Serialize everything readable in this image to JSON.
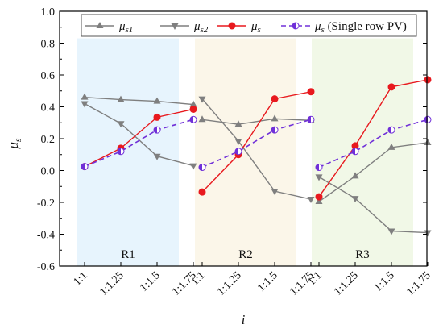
{
  "chart_data": {
    "type": "line",
    "xlabel": "i",
    "ylabel_main": "μ",
    "ylabel_sub": "s",
    "ylim": [
      -0.6,
      1.0
    ],
    "yticks": [
      "-0.6",
      "-0.4",
      "-0.2",
      "0.0",
      "0.2",
      "0.4",
      "0.6",
      "0.8",
      "1.0"
    ],
    "categories": [
      "1:1",
      "1:1.25",
      "1:1.5",
      "1:1.75"
    ],
    "panels": [
      {
        "label": "R1",
        "color": "#e7f4fd"
      },
      {
        "label": "R2",
        "color": "#fbf6e9"
      },
      {
        "label": "R3",
        "color": "#f1f8e7"
      }
    ],
    "series": [
      {
        "name": "μs1",
        "name_main": "μ",
        "name_sub": "s1",
        "color": "#7f7f7f",
        "marker": "triangle-up",
        "dashed": false,
        "values": [
          [
            0.46,
            0.445,
            0.435,
            0.415
          ],
          [
            0.32,
            0.29,
            0.325,
            0.315
          ],
          [
            -0.195,
            -0.035,
            0.145,
            0.175
          ]
        ]
      },
      {
        "name": "μs2",
        "name_main": "μ",
        "name_sub": "s2",
        "color": "#7f7f7f",
        "marker": "triangle-down",
        "dashed": false,
        "values": [
          [
            0.42,
            0.295,
            0.09,
            0.03
          ],
          [
            0.45,
            0.185,
            -0.13,
            -0.18
          ],
          [
            -0.04,
            -0.175,
            -0.38,
            -0.39
          ]
        ]
      },
      {
        "name": "μs",
        "name_main": "μ",
        "name_sub": "s",
        "color": "#e8191e",
        "marker": "circle",
        "dashed": false,
        "values": [
          [
            0.025,
            0.14,
            0.335,
            0.385
          ],
          [
            -0.135,
            0.1,
            0.45,
            0.495
          ],
          [
            -0.165,
            0.155,
            0.525,
            0.57
          ]
        ]
      },
      {
        "name": "μs (Single row PV)",
        "name_main": "μ",
        "name_sub": "s",
        "name_suffix": " (Single row PV)",
        "color": "#7030d8",
        "marker": "circle-half",
        "dashed": true,
        "values": [
          [
            0.025,
            0.12,
            0.255,
            0.32
          ],
          [
            0.02,
            0.12,
            0.255,
            0.32
          ],
          [
            0.02,
            0.12,
            0.255,
            0.32
          ]
        ]
      }
    ],
    "grid": false,
    "legend_position": "top"
  }
}
